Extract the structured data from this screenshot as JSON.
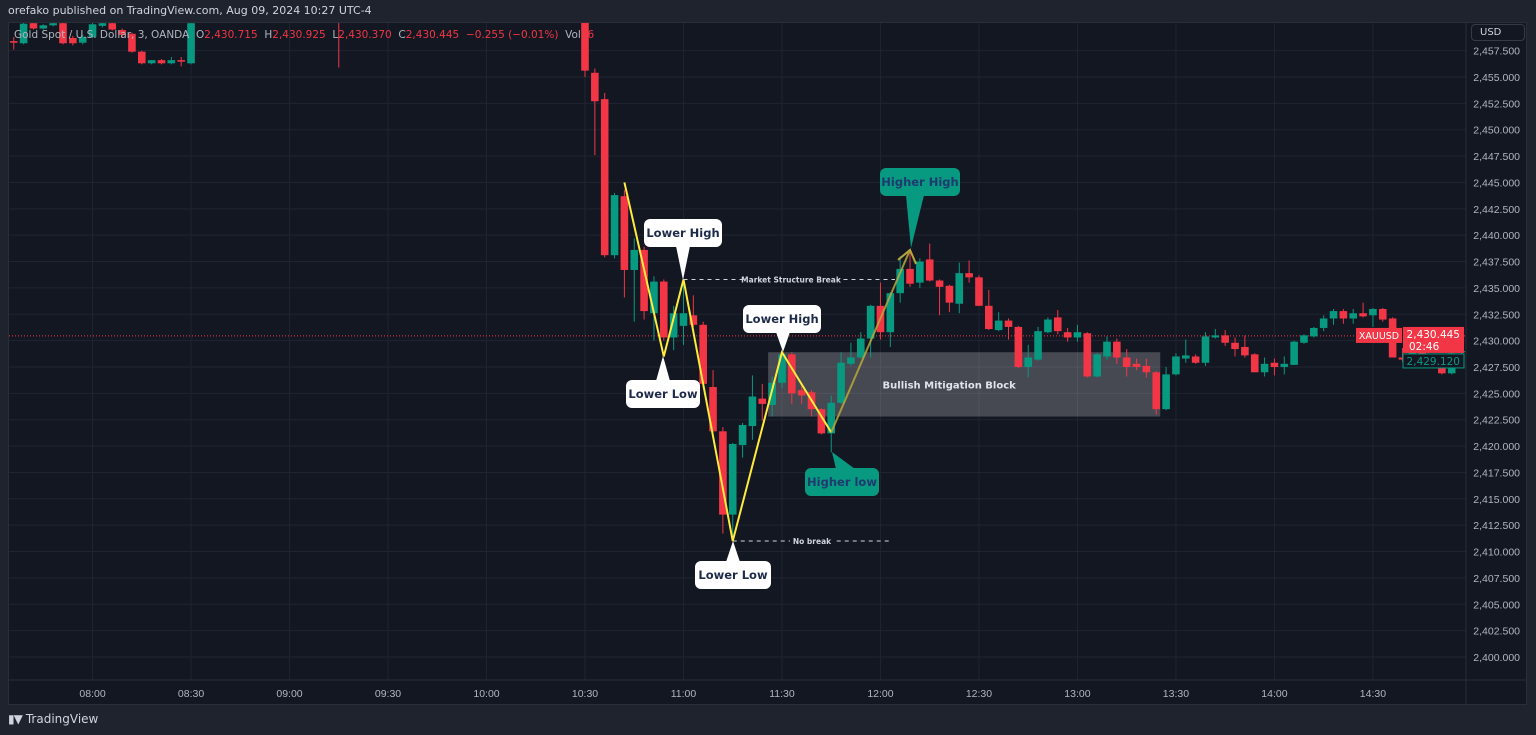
{
  "header": {
    "published": "orefako published on TradingView.com, Aug 09, 2024 10:27 UTC-4"
  },
  "legend": {
    "symbol": "Gold Spot / U.S. Dollar, 3, OANDA",
    "o_label": "O",
    "o": "2,430.715",
    "h_label": "H",
    "h": "2,430.925",
    "l_label": "L",
    "l": "2,430.370",
    "c_label": "C",
    "c": "2,430.445",
    "change": "−0.255 (−0.01%)",
    "vol_label": "Vol",
    "vol": "66"
  },
  "price_axis": {
    "currency": "USD"
  },
  "last_price": {
    "symbol": "XAUUSD",
    "price": "2,430.445",
    "countdown": "02:46",
    "other": "2,429.120"
  },
  "footer": {
    "brand": "TradingView",
    "logo": "TV"
  },
  "colors": {
    "up": "#089981",
    "down": "#f23645",
    "zigzag": "#ffeb3b",
    "background": "#131722",
    "grid": "#1f2430",
    "block": "#ffffff"
  },
  "annotations": {
    "lower_high_1": "Lower High",
    "lower_low_1": "Lower Low",
    "lower_high_2": "Lower High",
    "lower_low_2": "Lower Low",
    "higher_low": "Higher low",
    "higher_high": "Higher High",
    "structure_break": "Market Structure Break",
    "no_break": "No break",
    "mitigation_block": "Bullish Mitigation Block"
  },
  "chart_data": {
    "type": "candlestick",
    "symbol": "XAUUSD",
    "interval_minutes": 3,
    "ylim": [
      2397.5,
      2460.2
    ],
    "xlim": [
      "07:33",
      "15:12"
    ],
    "y_ticks": [
      "2,457.500",
      "2,455.000",
      "2,452.500",
      "2,450.000",
      "2,447.500",
      "2,445.000",
      "2,442.500",
      "2,440.000",
      "2,437.500",
      "2,435.000",
      "2,432.500",
      "2,430.000",
      "2,427.500",
      "2,425.000",
      "2,422.500",
      "2,420.000",
      "2,417.500",
      "2,415.000",
      "2,412.500",
      "2,410.000",
      "2,407.500",
      "2,405.000",
      "2,402.500",
      "2,400.000"
    ],
    "x_ticks": [
      "08:00",
      "08:30",
      "09:00",
      "09:30",
      "10:00",
      "10:30",
      "11:00",
      "11:30",
      "12:00",
      "12:30",
      "13:00",
      "13:30",
      "14:00",
      "14:30"
    ],
    "grid": true,
    "last_price": 2430.445,
    "fields": [
      "time",
      "open",
      "high",
      "low",
      "close"
    ],
    "candles": [
      [
        "07:36",
        2458.4,
        2458.8,
        2457.6,
        2458.25
      ],
      [
        "07:39",
        2458.2,
        2460.2,
        2458.1,
        2460.05
      ],
      [
        "07:42",
        2460.1,
        2460.3,
        2459.5,
        2459.6
      ],
      [
        "07:45",
        2459.6,
        2460.0,
        2459.5,
        2459.9
      ],
      [
        "07:48",
        2459.9,
        2460.4,
        2459.8,
        2460.1
      ],
      [
        "07:51",
        2460.1,
        2460.4,
        2458.1,
        2458.2
      ],
      [
        "07:54",
        2458.7,
        2458.9,
        2458.0,
        2458.2
      ],
      [
        "07:57",
        2458.25,
        2459.0,
        2458.1,
        2458.8
      ],
      [
        "08:00",
        2458.8,
        2460.5,
        2458.7,
        2460.0
      ],
      [
        "08:03",
        2459.85,
        2460.3,
        2459.7,
        2460.1
      ],
      [
        "08:06",
        2460.1,
        2460.3,
        2459.4,
        2459.5
      ],
      [
        "08:09",
        2459.45,
        2459.6,
        2458.7,
        2459.0
      ],
      [
        "08:12",
        2459.1,
        2459.2,
        2457.3,
        2457.4
      ],
      [
        "08:15",
        2457.4,
        2457.5,
        2456.2,
        2456.3
      ],
      [
        "08:18",
        2456.3,
        2456.6,
        2456.2,
        2456.6
      ],
      [
        "08:21",
        2456.6,
        2456.7,
        2456.2,
        2456.3
      ],
      [
        "08:24",
        2456.3,
        2456.9,
        2456.2,
        2456.6
      ],
      [
        "08:27",
        2456.6,
        2456.9,
        2456.0,
        2456.45
      ],
      [
        "08:30",
        2456.3,
        2460.5,
        2456.2,
        2460.1
      ],
      [
        "09:15",
        2462.0,
        2462.0,
        2455.9,
        2461.5
      ],
      [
        "10:30",
        2462.0,
        2462.5,
        2455.0,
        2455.6
      ],
      [
        "10:33",
        2455.4,
        2455.8,
        2447.6,
        2452.7
      ],
      [
        "10:36",
        2452.9,
        2453.5,
        2437.9,
        2438.1
      ],
      [
        "10:39",
        2438.1,
        2444.0,
        2437.8,
        2443.8
      ],
      [
        "10:42",
        2443.7,
        2444.3,
        2434.1,
        2436.7
      ],
      [
        "10:45",
        2436.7,
        2439.7,
        2431.8,
        2438.6
      ],
      [
        "10:48",
        2438.6,
        2438.9,
        2432.0,
        2432.8
      ],
      [
        "10:51",
        2432.6,
        2436.1,
        2430.0,
        2435.6
      ],
      [
        "10:54",
        2435.6,
        2435.8,
        2430.0,
        2430.3
      ],
      [
        "10:57",
        2430.3,
        2433.3,
        2429.1,
        2432.6
      ],
      [
        "11:00",
        2431.4,
        2435.6,
        2429.6,
        2432.6
      ],
      [
        "11:03",
        2432.4,
        2434.3,
        2431.3,
        2431.5
      ],
      [
        "11:06",
        2431.5,
        2431.8,
        2425.5,
        2425.9
      ],
      [
        "11:09",
        2425.6,
        2427.2,
        2421.3,
        2421.4
      ],
      [
        "11:12",
        2421.4,
        2421.8,
        2411.7,
        2413.5
      ],
      [
        "11:15",
        2413.5,
        2420.3,
        2411.0,
        2420.2
      ],
      [
        "11:18",
        2420.1,
        2422.2,
        2418.9,
        2422.0
      ],
      [
        "11:21",
        2421.9,
        2426.7,
        2420.6,
        2424.7
      ],
      [
        "11:24",
        2424.5,
        2425.9,
        2422.4,
        2424.0
      ],
      [
        "11:27",
        2423.9,
        2426.6,
        2422.8,
        2426.0
      ],
      [
        "11:30",
        2426.0,
        2428.9,
        2425.5,
        2428.7
      ],
      [
        "11:33",
        2428.7,
        2428.9,
        2424.0,
        2425.0
      ],
      [
        "11:36",
        2425.3,
        2426.0,
        2424.0,
        2424.8
      ],
      [
        "11:39",
        2425.1,
        2425.3,
        2422.8,
        2423.5
      ],
      [
        "11:42",
        2423.5,
        2423.6,
        2421.1,
        2421.2
      ],
      [
        "11:45",
        2421.2,
        2424.8,
        2419.4,
        2424.1
      ],
      [
        "11:48",
        2424.1,
        2428.9,
        2424.0,
        2427.9
      ],
      [
        "11:51",
        2427.8,
        2429.8,
        2427.6,
        2428.4
      ],
      [
        "11:54",
        2428.4,
        2430.8,
        2428.3,
        2430.2
      ],
      [
        "11:57",
        2430.2,
        2433.4,
        2428.4,
        2433.3
      ],
      [
        "12:00",
        2433.3,
        2435.5,
        2430.1,
        2430.8
      ],
      [
        "12:03",
        2430.8,
        2434.6,
        2429.4,
        2434.5
      ],
      [
        "12:06",
        2434.5,
        2438.0,
        2433.6,
        2436.8
      ],
      [
        "12:09",
        2436.8,
        2438.6,
        2435.1,
        2435.4
      ],
      [
        "12:12",
        2435.5,
        2437.8,
        2435.0,
        2437.5
      ],
      [
        "12:15",
        2437.7,
        2439.2,
        2435.6,
        2435.7
      ],
      [
        "12:18",
        2435.7,
        2435.8,
        2432.4,
        2435.1
      ],
      [
        "12:21",
        2435.2,
        2435.3,
        2432.7,
        2433.6
      ],
      [
        "12:24",
        2433.5,
        2437.4,
        2432.6,
        2436.4
      ],
      [
        "12:27",
        2436.4,
        2437.6,
        2435.5,
        2436.0
      ],
      [
        "12:30",
        2436.0,
        2436.2,
        2433.3,
        2433.3
      ],
      [
        "12:33",
        2433.3,
        2434.8,
        2431.0,
        2431.1
      ],
      [
        "12:36",
        2431.0,
        2432.7,
        2430.9,
        2431.9
      ],
      [
        "12:39",
        2431.9,
        2432.1,
        2430.1,
        2431.3
      ],
      [
        "12:42",
        2431.3,
        2431.4,
        2427.4,
        2427.5
      ],
      [
        "12:45",
        2427.5,
        2429.6,
        2426.5,
        2428.4
      ],
      [
        "12:48",
        2428.2,
        2431.3,
        2428.1,
        2430.9
      ],
      [
        "12:51",
        2430.8,
        2432.2,
        2430.7,
        2432.0
      ],
      [
        "12:54",
        2432.2,
        2432.9,
        2430.6,
        2430.9
      ],
      [
        "12:57",
        2430.8,
        2431.2,
        2429.9,
        2430.3
      ],
      [
        "13:00",
        2430.3,
        2431.5,
        2429.9,
        2430.8
      ],
      [
        "13:03",
        2430.7,
        2430.8,
        2426.5,
        2426.6
      ],
      [
        "13:06",
        2426.6,
        2428.8,
        2426.5,
        2428.7
      ],
      [
        "13:09",
        2428.5,
        2430.4,
        2428.2,
        2429.9
      ],
      [
        "13:12",
        2429.9,
        2430.2,
        2427.8,
        2428.4
      ],
      [
        "13:15",
        2428.4,
        2429.2,
        2426.6,
        2427.5
      ],
      [
        "13:18",
        2427.8,
        2428.3,
        2427.2,
        2427.5
      ],
      [
        "13:21",
        2427.6,
        2428.3,
        2426.5,
        2427.0
      ],
      [
        "13:24",
        2427.0,
        2427.1,
        2423.0,
        2423.5
      ],
      [
        "13:27",
        2423.5,
        2427.5,
        2423.4,
        2426.8
      ],
      [
        "13:30",
        2426.8,
        2428.8,
        2426.7,
        2428.5
      ],
      [
        "13:33",
        2428.3,
        2430.1,
        2427.9,
        2428.6
      ],
      [
        "13:36",
        2428.5,
        2428.7,
        2427.8,
        2427.9
      ],
      [
        "13:39",
        2427.9,
        2430.8,
        2427.6,
        2430.4
      ],
      [
        "13:42",
        2430.3,
        2431.1,
        2430.2,
        2430.5
      ],
      [
        "13:45",
        2430.5,
        2431.0,
        2429.5,
        2429.8
      ],
      [
        "13:48",
        2429.8,
        2430.3,
        2428.5,
        2429.2
      ],
      [
        "13:51",
        2429.4,
        2430.5,
        2428.4,
        2428.6
      ],
      [
        "13:54",
        2428.7,
        2428.8,
        2427.0,
        2427.0
      ],
      [
        "13:57",
        2427.0,
        2428.4,
        2426.6,
        2427.8
      ],
      [
        "14:00",
        2427.9,
        2428.3,
        2426.7,
        2427.5
      ],
      [
        "14:03",
        2427.5,
        2428.5,
        2426.8,
        2427.8
      ],
      [
        "14:06",
        2427.7,
        2430.0,
        2427.7,
        2429.9
      ],
      [
        "14:09",
        2429.8,
        2430.6,
        2429.7,
        2430.5
      ],
      [
        "14:12",
        2430.4,
        2431.3,
        2430.3,
        2431.2
      ],
      [
        "14:15",
        2431.2,
        2432.4,
        2430.9,
        2432.1
      ],
      [
        "14:18",
        2432.1,
        2433.0,
        2431.5,
        2432.8
      ],
      [
        "14:21",
        2432.8,
        2433.0,
        2431.6,
        2432.1
      ],
      [
        "14:24",
        2432.1,
        2433.0,
        2431.6,
        2432.6
      ],
      [
        "14:27",
        2432.6,
        2433.6,
        2432.2,
        2432.3
      ],
      [
        "14:30",
        2432.4,
        2433.1,
        2431.3,
        2433.0
      ],
      [
        "14:33",
        2433.0,
        2433.1,
        2431.8,
        2432.0
      ],
      [
        "14:36",
        2432.1,
        2432.2,
        2428.4,
        2428.4
      ],
      [
        "14:39",
        2428.4,
        2429.3,
        2428.0,
        2428.2
      ],
      [
        "14:42",
        2428.2,
        2429.2,
        2427.9,
        2429.0
      ],
      [
        "14:45",
        2429.0,
        2429.2,
        2427.8,
        2428.6
      ],
      [
        "14:48",
        2428.6,
        2428.7,
        2427.7,
        2427.7
      ],
      [
        "14:51",
        2427.8,
        2427.9,
        2426.8,
        2426.9
      ],
      [
        "14:54",
        2426.9,
        2428.9,
        2426.8,
        2428.8
      ],
      [
        "14:57",
        2428.9,
        2429.3,
        2428.7,
        2429.0
      ]
    ],
    "zigzag": [
      [
        "10:42",
        2445.0
      ],
      [
        "10:54",
        2428.5
      ],
      [
        "11:00",
        2435.8
      ],
      [
        "11:15",
        2411.0
      ],
      [
        "11:30",
        2428.9
      ],
      [
        "11:45",
        2421.3
      ],
      [
        "12:09",
        2438.6
      ]
    ],
    "structure_break_level": 2435.8,
    "no_break_level": 2411.0,
    "mitigation_block": {
      "from": "11:27",
      "to": "13:24",
      "top": 2428.9,
      "bottom": 2422.8
    }
  }
}
